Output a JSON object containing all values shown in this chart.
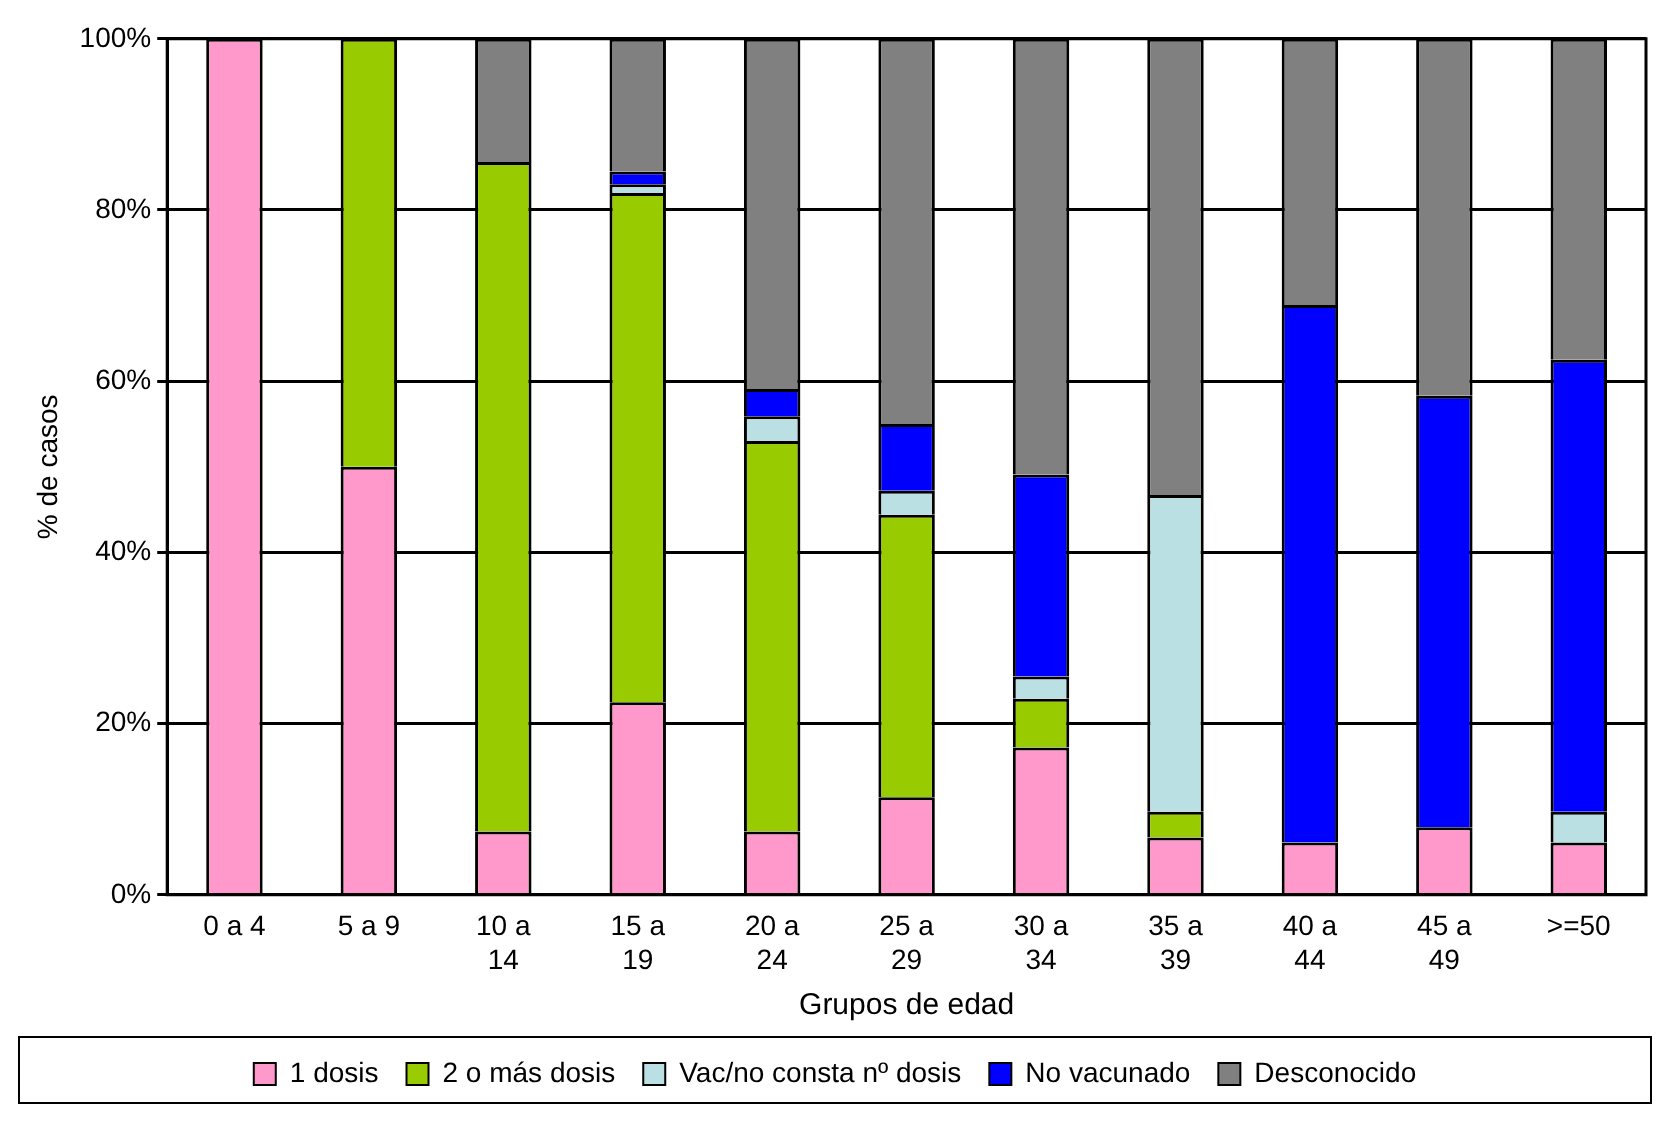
{
  "chart_data": {
    "type": "bar",
    "stacked": true,
    "xlabel": "Grupos de edad",
    "ylabel": "% de casos",
    "categories": [
      "0 a 4",
      "5 a 9",
      "10 a 14",
      "15 a 19",
      "20 a 24",
      "25 a 29",
      "30 a 34",
      "35 a 39",
      "40 a 44",
      "45 a 49",
      ">=50"
    ],
    "series": [
      {
        "name": "1 dosis",
        "color": "#ff99cc",
        "values": [
          100,
          50,
          7.4,
          22.5,
          7.4,
          11.4,
          17.2,
          6.7,
          6.1,
          7.9,
          6.1
        ]
      },
      {
        "name": "2 o más dosis",
        "color": "#99cc00",
        "values": [
          0,
          50,
          78.2,
          59.5,
          45.6,
          33,
          5.7,
          3,
          0,
          0,
          0
        ]
      },
      {
        "name": "Vac/no consta nº dosis",
        "color": "#bbe0e3",
        "values": [
          0,
          0,
          0,
          1,
          2.9,
          2.8,
          2.6,
          37,
          0,
          0,
          3.6
        ]
      },
      {
        "name": "No vacunado",
        "color": "#0000ff",
        "values": [
          0,
          0,
          0,
          1.5,
          3.2,
          7.8,
          23.6,
          0,
          62.8,
          50.4,
          52.8
        ]
      },
      {
        "name": "Desconocido",
        "color": "#808080",
        "values": [
          0,
          0,
          14.4,
          15.5,
          40.9,
          45,
          50.9,
          53.3,
          31.1,
          41.7,
          37.5
        ]
      }
    ],
    "ylim": [
      0,
      100
    ],
    "yticks": [
      {
        "value": 0,
        "label": "0%"
      },
      {
        "value": 20,
        "label": "20%"
      },
      {
        "value": 40,
        "label": "40%"
      },
      {
        "value": 60,
        "label": "60%"
      },
      {
        "value": 80,
        "label": "80%"
      },
      {
        "value": 100,
        "label": "100%"
      }
    ],
    "grid": "y",
    "legend": "bottom"
  }
}
